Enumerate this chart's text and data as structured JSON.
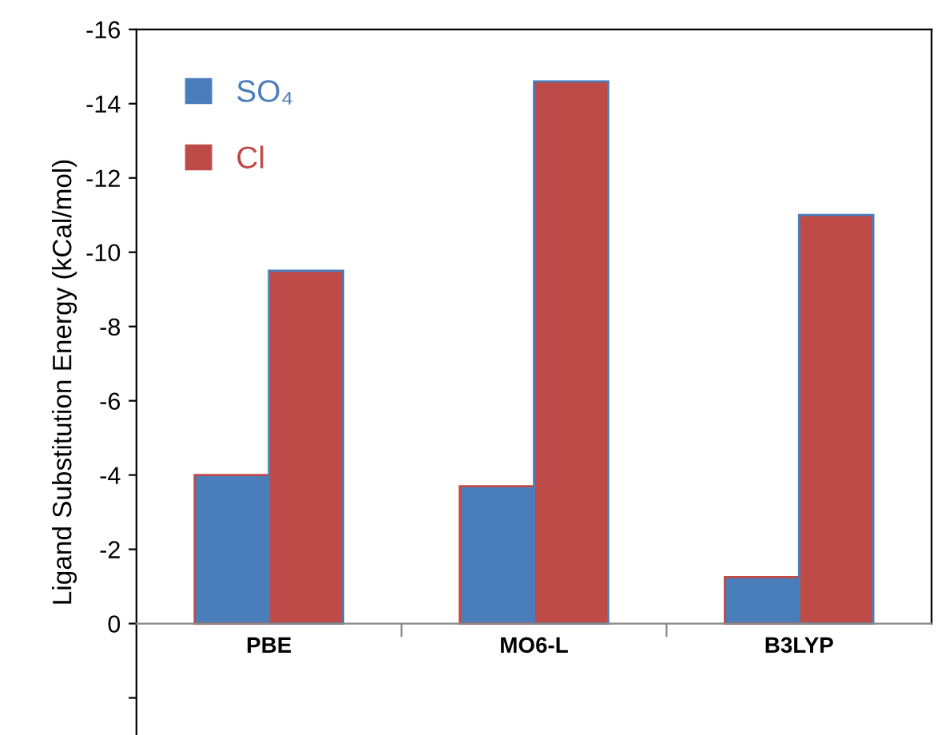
{
  "chart_data": {
    "type": "bar",
    "ylabel": "Ligand Substitution Energy (kCal/mol)",
    "categories": [
      "PBE",
      "MO6-L",
      "B3LYP"
    ],
    "series": [
      {
        "name": "SO₄",
        "color": "#4a7ebb",
        "values": [
          -4.0,
          -3.7,
          -1.25
        ]
      },
      {
        "name": "Cl",
        "color": "#be4b48",
        "values": [
          -9.5,
          -14.6,
          -11.0
        ]
      }
    ],
    "ylim": [
      3,
      -16
    ],
    "yticks": [
      -16,
      -14,
      -12,
      -10,
      -8,
      -6,
      -4,
      -2,
      0,
      {
        "value": 2,
        "label": null
      }
    ],
    "grid": false,
    "legend": "top left"
  }
}
